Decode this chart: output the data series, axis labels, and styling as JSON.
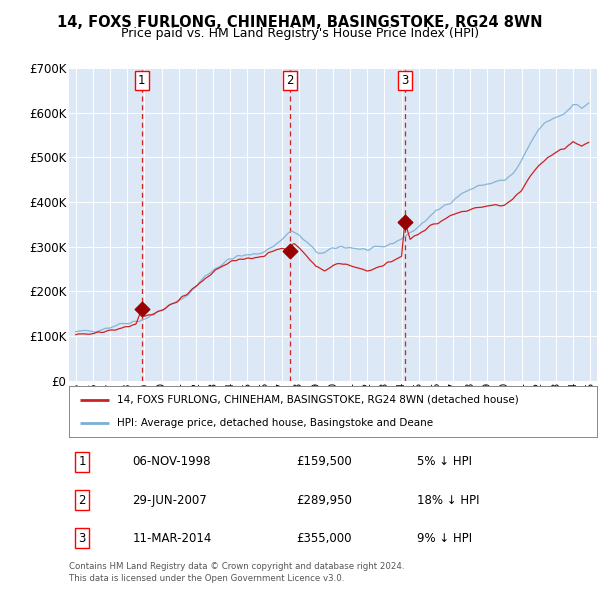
{
  "title": "14, FOXS FURLONG, CHINEHAM, BASINGSTOKE, RG24 8WN",
  "subtitle": "Price paid vs. HM Land Registry's House Price Index (HPI)",
  "legend_line1": "14, FOXS FURLONG, CHINEHAM, BASINGSTOKE, RG24 8WN (detached house)",
  "legend_line2": "HPI: Average price, detached house, Basingstoke and Deane",
  "footer_line1": "Contains HM Land Registry data © Crown copyright and database right 2024.",
  "footer_line2": "This data is licensed under the Open Government Licence v3.0.",
  "transactions": [
    {
      "num": 1,
      "date": "06-NOV-1998",
      "price": 159500,
      "pct": "5%",
      "dir": "↓"
    },
    {
      "num": 2,
      "date": "29-JUN-2007",
      "price": 289950,
      "pct": "18%",
      "dir": "↓"
    },
    {
      "num": 3,
      "date": "11-MAR-2014",
      "price": 355000,
      "pct": "9%",
      "dir": "↓"
    }
  ],
  "transaction_years": [
    1998.85,
    2007.49,
    2014.19
  ],
  "transaction_prices": [
    159500,
    289950,
    355000
  ],
  "plot_bg_color": "#dce8f5",
  "grid_color": "#ffffff",
  "hpi_color": "#7bafd4",
  "price_color": "#cc2222",
  "marker_color": "#990000",
  "vline_color": "#cc0000",
  "ylim": [
    0,
    700000
  ],
  "yticks": [
    0,
    100000,
    200000,
    300000,
    400000,
    500000,
    600000,
    700000
  ],
  "ytick_labels": [
    "£0",
    "£100K",
    "£200K",
    "£300K",
    "£400K",
    "£500K",
    "£600K",
    "£700K"
  ],
  "xlim_start": 1994.6,
  "xlim_end": 2025.4,
  "xtick_start": 1995,
  "xtick_end": 2026
}
